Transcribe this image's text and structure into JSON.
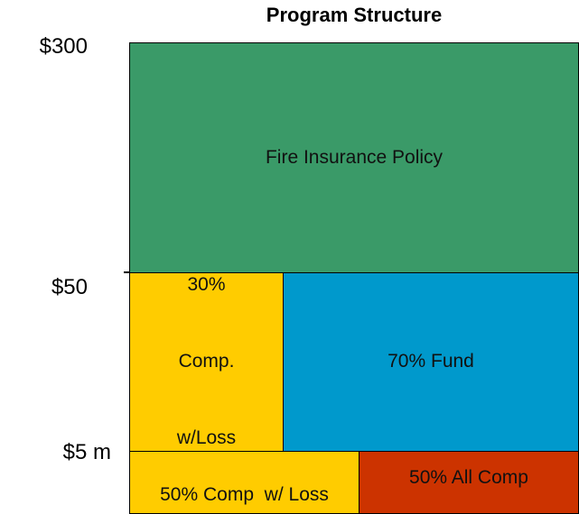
{
  "title": "Program Structure",
  "axis_labels": [
    "$300",
    "$50",
    "$5 m"
  ],
  "blocks": [
    {
      "label": "Fire Insurance Policy"
    },
    {
      "lines": [
        "30%",
        "Comp.",
        "w/Loss"
      ]
    },
    {
      "label": "70% Fund"
    },
    {
      "label": "50% Comp  w/ Loss"
    },
    {
      "label": "50% All Comp"
    }
  ]
}
